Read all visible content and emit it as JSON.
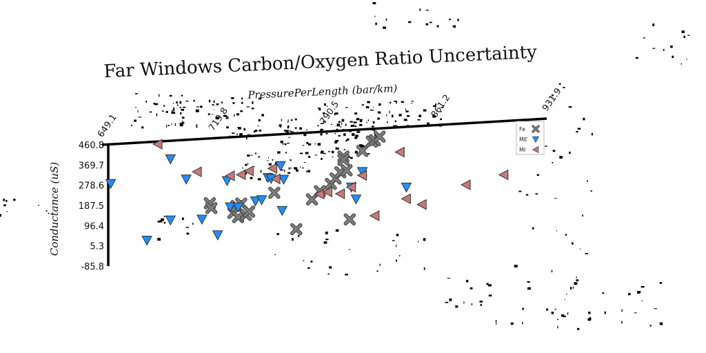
{
  "chart_data": {
    "type": "scatter",
    "title": "Far Windows Carbon/Oxygen Ratio Uncertainty",
    "xlabel": "PressurePerLength (bar/km)",
    "ylabel": "Conductance (uS)",
    "xlim": [
      649.1,
      931.9
    ],
    "ylim": [
      -85.8,
      460.8
    ],
    "x_ticks": [
      "649.1",
      "719.8",
      "790.5",
      "861.2",
      "931.9"
    ],
    "y_ticks": [
      "460.8",
      "369.7",
      "278.6",
      "187.5",
      "96.4",
      "5.3",
      "-85.8"
    ],
    "grid": false,
    "legend_position": "top-right",
    "series": [
      {
        "name": "Fe",
        "marker": "x",
        "color": "#808080",
        "points": [
          [
            715,
            170
          ],
          [
            716,
            148
          ],
          [
            730,
            120
          ],
          [
            732,
            150
          ],
          [
            733,
            100
          ],
          [
            735,
            160
          ],
          [
            738,
            108
          ],
          [
            740,
            122
          ],
          [
            756,
            200
          ],
          [
            770,
            30
          ],
          [
            780,
            160
          ],
          [
            785,
            195
          ],
          [
            792,
            225
          ],
          [
            795,
            248
          ],
          [
            798,
            275
          ],
          [
            800,
            345
          ],
          [
            802,
            282
          ],
          [
            804,
            60
          ],
          [
            812,
            365
          ],
          [
            818,
            405
          ],
          [
            820,
            410
          ],
          [
            823,
            425
          ],
          [
            800,
            330
          ]
        ]
      },
      {
        "name": "ME",
        "marker": "v",
        "color": "#1f8fff",
        "points": [
          [
            652,
            285
          ],
          [
            675,
            20
          ],
          [
            690,
            105
          ],
          [
            690,
            380
          ],
          [
            700,
            285
          ],
          [
            710,
            100
          ],
          [
            720,
            25
          ],
          [
            726,
            267
          ],
          [
            728,
            148
          ],
          [
            733,
            145
          ],
          [
            744,
            168
          ],
          [
            748,
            172
          ],
          [
            752,
            270
          ],
          [
            754,
            265
          ],
          [
            760,
            320
          ],
          [
            761,
            118
          ],
          [
            762,
            258
          ],
          [
            805,
            205
          ],
          [
            808,
            150
          ],
          [
            812,
            272
          ],
          [
            840,
            190
          ]
        ]
      },
      {
        "name": "MI",
        "marker": "<",
        "color": "#c87878",
        "points": [
          [
            682,
            450
          ],
          [
            707,
            315
          ],
          [
            728,
            288
          ],
          [
            735,
            290
          ],
          [
            740,
            305
          ],
          [
            755,
            310
          ],
          [
            757,
            262
          ],
          [
            785,
            182
          ],
          [
            790,
            190
          ],
          [
            798,
            178
          ],
          [
            805,
            205
          ],
          [
            812,
            255
          ],
          [
            820,
            70
          ],
          [
            836,
            350
          ],
          [
            840,
            138
          ],
          [
            850,
            108
          ],
          [
            878,
            185
          ],
          [
            902,
            220
          ]
        ]
      }
    ]
  }
}
